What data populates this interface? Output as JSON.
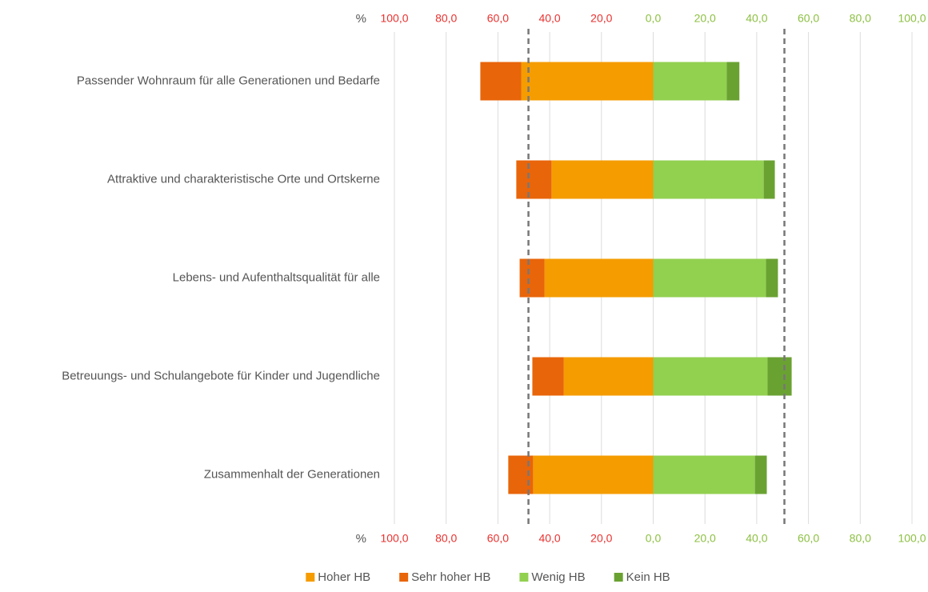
{
  "chart_data": {
    "type": "diverging_bar",
    "axis_label": "%",
    "categories": [
      "Passender Wohnraum für alle Generationen und Bedarfe",
      "Attraktive und charakteristische Orte und Ortskerne",
      "Lebens- und Aufenthaltsqualität für alle",
      "Betreuungs- und Schulangebote für Kinder und Jugendliche",
      "Zusammenhalt der Generationen"
    ],
    "series": [
      {
        "name": "Hoher HB",
        "color": "#f59c00",
        "values": [
          -51.0,
          -39.3,
          -42.0,
          -34.6,
          -46.4
        ]
      },
      {
        "name": "Sehr hoher HB",
        "color": "#e8650a",
        "values": [
          -15.8,
          -13.6,
          -9.6,
          -12.1,
          -9.6
        ]
      },
      {
        "name": "Wenig HB",
        "color": "#92d050",
        "values": [
          28.4,
          42.7,
          43.6,
          44.2,
          39.3
        ]
      },
      {
        "name": "Kein HB",
        "color": "#6aa232",
        "values": [
          4.9,
          4.3,
          4.6,
          9.3,
          4.6
        ]
      }
    ],
    "xlim": [
      -100,
      100
    ],
    "xticks": [
      {
        "value": -100,
        "label": "100,0"
      },
      {
        "value": -80,
        "label": "80,0"
      },
      {
        "value": -60,
        "label": "60,0"
      },
      {
        "value": -40,
        "label": "40,0"
      },
      {
        "value": -20,
        "label": "20,0"
      },
      {
        "value": 0,
        "label": "0,0"
      },
      {
        "value": 20,
        "label": "20,0"
      },
      {
        "value": 40,
        "label": "40,0"
      },
      {
        "value": 60,
        "label": "60,0"
      },
      {
        "value": 80,
        "label": "80,0"
      },
      {
        "value": 100,
        "label": "100,0"
      }
    ],
    "negative_tick_color": "#e8322f",
    "positive_tick_color": "#8dc043",
    "reference_lines": [
      -48.2,
      50.7
    ],
    "grid": true
  }
}
